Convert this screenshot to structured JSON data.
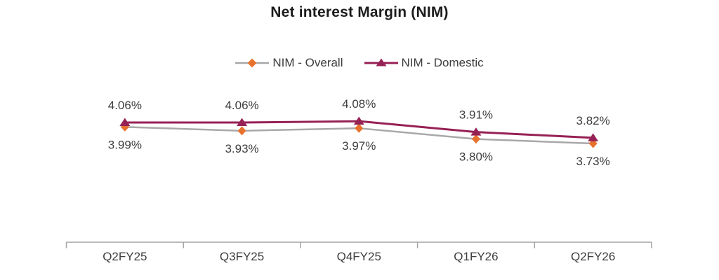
{
  "chart_data": {
    "type": "line",
    "title": "Net interest Margin (NIM)",
    "categories": [
      "Q2FY25",
      "Q3FY25",
      "Q4FY25",
      "Q1FY26",
      "Q2FY26"
    ],
    "series": [
      {
        "name": "NIM - Overall",
        "values": [
          3.99,
          3.93,
          3.97,
          3.8,
          3.73
        ],
        "labels": [
          "3.99%",
          "3.93%",
          "3.97%",
          "3.80%",
          "3.73%"
        ],
        "marker": "diamond",
        "marker_color": "#e7722d",
        "line_color": "#a8a8a8",
        "label_position": "below"
      },
      {
        "name": "NIM - Domestic",
        "values": [
          4.06,
          4.06,
          4.08,
          3.91,
          3.82
        ],
        "labels": [
          "4.06%",
          "4.06%",
          "4.08%",
          "3.91%",
          "3.82%"
        ],
        "marker": "triangle",
        "marker_color": "#962155",
        "line_color": "#962155",
        "label_position": "above"
      }
    ],
    "legend_position": "top-center",
    "grid": false,
    "y_axis_visible": false,
    "x_axis_color": "#a3a3a3",
    "text_color": "#3d3d3d"
  }
}
